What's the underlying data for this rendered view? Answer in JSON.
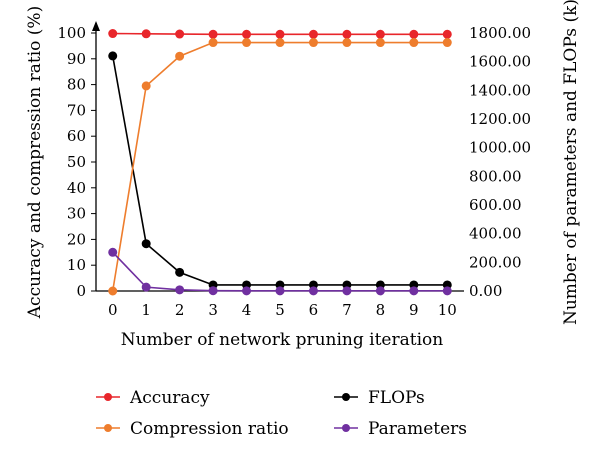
{
  "chart_data": {
    "type": "line",
    "title": "",
    "xlabel": "Number of network pruning iteration",
    "ylabel": "Accuracy and compression ratio (%)",
    "y2label": "Number of parameters and FLOPs (k)",
    "x": [
      0,
      1,
      2,
      3,
      4,
      5,
      6,
      7,
      8,
      9,
      10
    ],
    "xticks": [
      "0",
      "1",
      "2",
      "3",
      "4",
      "5",
      "6",
      "7",
      "8",
      "9",
      "10"
    ],
    "ylim": [
      0,
      100
    ],
    "yticks": [
      "0",
      "10",
      "20",
      "30",
      "40",
      "50",
      "60",
      "70",
      "80",
      "90",
      "100"
    ],
    "y2lim": [
      0,
      1800
    ],
    "y2ticks": [
      "0.00",
      "200.00",
      "400.00",
      "600.00",
      "800.00",
      "1000.00",
      "1200.00",
      "1400.00",
      "1600.00",
      "1800.00"
    ],
    "grid": false,
    "legend_position": "bottom",
    "series": [
      {
        "name": "Accuracy",
        "axis": "left",
        "color": "#e8262b",
        "values": [
          99.8,
          99.7,
          99.6,
          99.5,
          99.5,
          99.5,
          99.5,
          99.5,
          99.5,
          99.5,
          99.5
        ]
      },
      {
        "name": "FLOPs",
        "axis": "right",
        "color": "#000000",
        "values": [
          1640,
          330,
          130,
          42,
          42,
          42,
          42,
          42,
          42,
          42,
          42
        ]
      },
      {
        "name": "Compression ratio",
        "axis": "left",
        "color": "#ee7d2d",
        "values": [
          0,
          79.5,
          91,
          96.3,
          96.3,
          96.3,
          96.3,
          96.3,
          96.3,
          96.3,
          96.3
        ]
      },
      {
        "name": "Parameters",
        "axis": "right",
        "color": "#7030a0",
        "values": [
          270,
          27,
          8,
          2,
          1,
          1,
          1,
          1,
          1,
          1,
          1
        ]
      }
    ]
  }
}
